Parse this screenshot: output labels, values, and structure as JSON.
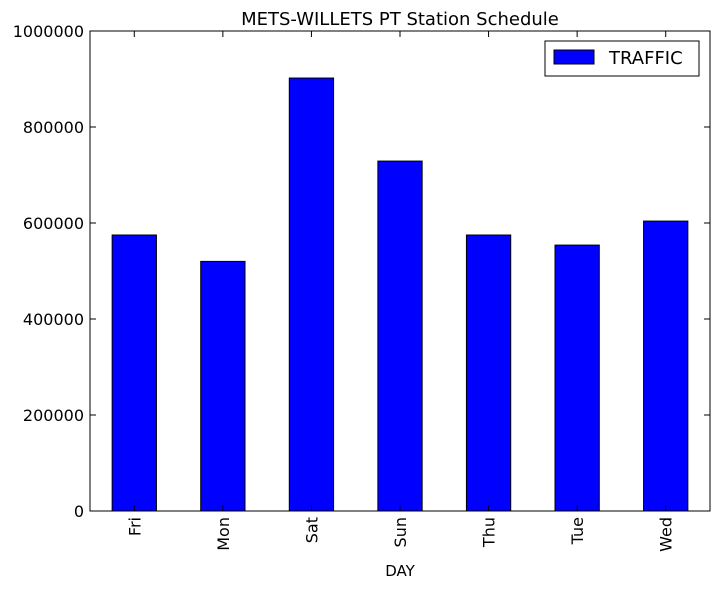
{
  "chart_data": {
    "type": "bar",
    "title": "METS-WILLETS PT Station Schedule",
    "xlabel": "DAY",
    "ylabel": "",
    "categories": [
      "Fri",
      "Mon",
      "Sat",
      "Sun",
      "Thu",
      "Tue",
      "Wed"
    ],
    "series": [
      {
        "name": "TRAFFIC",
        "color": "#0000ff",
        "values": [
          575000,
          520000,
          902000,
          729000,
          575000,
          554000,
          604000
        ]
      }
    ],
    "ylim": [
      0,
      1000000
    ],
    "yticks": [
      0,
      200000,
      400000,
      600000,
      800000,
      1000000
    ],
    "ytick_labels": [
      "0",
      "200000",
      "400000",
      "600000",
      "800000",
      "1000000"
    ],
    "grid": false,
    "legend_position": "top-right"
  }
}
